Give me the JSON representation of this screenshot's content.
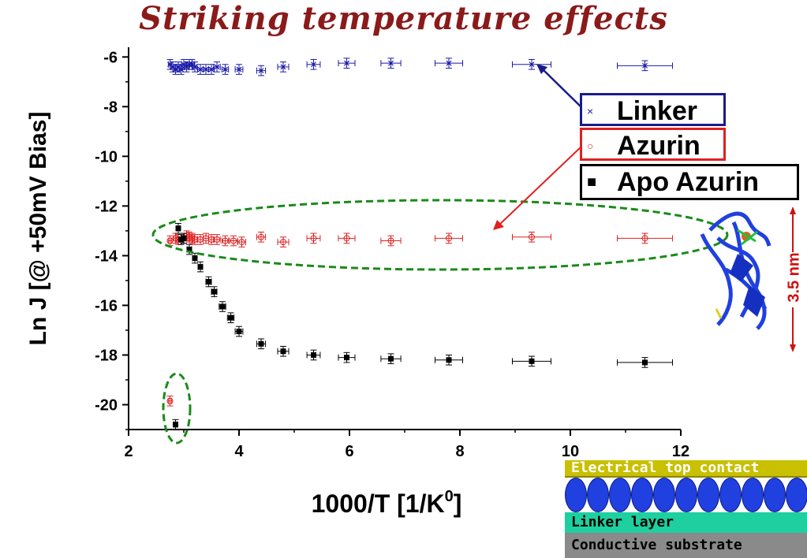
{
  "title": "Striking temperature effects",
  "chart_data": {
    "type": "scatter",
    "xlabel": "1000/T [1/K",
    "xlabel_sup": "0",
    "xlabel_end": "]",
    "ylabel": "Ln J [@ +50mV Bias]",
    "xlim": [
      2,
      12
    ],
    "ylim": [
      -21,
      -5.8
    ],
    "xticks": [
      2,
      4,
      6,
      8,
      10,
      12
    ],
    "yticks": [
      -20,
      -18,
      -16,
      -14,
      -12,
      -10,
      -8,
      -6
    ],
    "series": [
      {
        "name": "Linker",
        "marker": "x",
        "color": "#1a1aa8",
        "x": [
          2.75,
          2.8,
          2.85,
          2.9,
          2.95,
          3.0,
          3.05,
          3.1,
          3.15,
          3.2,
          3.3,
          3.4,
          3.5,
          3.6,
          3.75,
          4.0,
          4.4,
          4.8,
          5.35,
          5.95,
          6.75,
          7.8,
          9.3,
          11.35
        ],
        "y": [
          -6.3,
          -6.4,
          -6.5,
          -6.4,
          -6.5,
          -6.3,
          -6.4,
          -6.3,
          -6.3,
          -6.4,
          -6.5,
          -6.5,
          -6.5,
          -6.4,
          -6.5,
          -6.5,
          -6.55,
          -6.4,
          -6.3,
          -6.25,
          -6.25,
          -6.25,
          -6.3,
          -6.35
        ],
        "xerr": [
          0.03,
          0.03,
          0.03,
          0.03,
          0.03,
          0.04,
          0.04,
          0.04,
          0.04,
          0.04,
          0.05,
          0.05,
          0.05,
          0.06,
          0.06,
          0.07,
          0.08,
          0.1,
          0.12,
          0.15,
          0.18,
          0.25,
          0.35,
          0.5
        ],
        "yerr": [
          0.2,
          0.2,
          0.2,
          0.2,
          0.2,
          0.2,
          0.2,
          0.2,
          0.2,
          0.2,
          0.2,
          0.2,
          0.2,
          0.2,
          0.2,
          0.2,
          0.2,
          0.2,
          0.2,
          0.2,
          0.2,
          0.2,
          0.2,
          0.2
        ]
      },
      {
        "name": "Azurin",
        "marker": "o",
        "color": "#e02020",
        "x": [
          2.75,
          2.85,
          2.9,
          3.0,
          3.05,
          3.1,
          3.15,
          3.2,
          3.3,
          3.4,
          3.5,
          3.6,
          3.75,
          3.9,
          4.05,
          4.4,
          4.8,
          5.35,
          5.95,
          6.75,
          7.8,
          9.3,
          11.35,
          2.75
        ],
        "y": [
          -13.4,
          -13.3,
          -13.35,
          -13.3,
          -13.2,
          -13.25,
          -13.3,
          -13.35,
          -13.35,
          -13.3,
          -13.35,
          -13.35,
          -13.4,
          -13.4,
          -13.45,
          -13.25,
          -13.45,
          -13.3,
          -13.3,
          -13.4,
          -13.3,
          -13.25,
          -13.3,
          -19.85
        ],
        "xerr": [
          0.03,
          0.03,
          0.03,
          0.04,
          0.04,
          0.04,
          0.04,
          0.04,
          0.05,
          0.05,
          0.05,
          0.06,
          0.06,
          0.07,
          0.07,
          0.08,
          0.1,
          0.12,
          0.15,
          0.18,
          0.25,
          0.35,
          0.5,
          0.03
        ],
        "yerr": [
          0.2,
          0.2,
          0.2,
          0.2,
          0.2,
          0.2,
          0.2,
          0.2,
          0.2,
          0.2,
          0.2,
          0.2,
          0.2,
          0.2,
          0.2,
          0.2,
          0.2,
          0.2,
          0.2,
          0.2,
          0.2,
          0.2,
          0.2,
          0.2
        ]
      },
      {
        "name": "Apo Azurin",
        "marker": "square",
        "color": "#000000",
        "x": [
          2.9,
          2.95,
          3.0,
          3.1,
          3.2,
          3.3,
          3.45,
          3.55,
          3.7,
          3.85,
          4.0,
          4.4,
          4.8,
          5.35,
          5.95,
          6.75,
          7.8,
          9.3,
          11.35,
          2.85
        ],
        "y": [
          -12.9,
          -13.35,
          -13.3,
          -13.75,
          -14.1,
          -14.45,
          -15.05,
          -15.45,
          -16.05,
          -16.5,
          -17.05,
          -17.55,
          -17.85,
          -18.0,
          -18.1,
          -18.15,
          -18.2,
          -18.25,
          -18.3,
          -20.8
        ],
        "xerr": [
          0.03,
          0.03,
          0.03,
          0.04,
          0.04,
          0.04,
          0.05,
          0.05,
          0.06,
          0.06,
          0.07,
          0.08,
          0.1,
          0.12,
          0.15,
          0.18,
          0.25,
          0.35,
          0.5,
          0.03
        ],
        "yerr": [
          0.2,
          0.2,
          0.2,
          0.2,
          0.2,
          0.2,
          0.2,
          0.2,
          0.2,
          0.2,
          0.2,
          0.2,
          0.2,
          0.2,
          0.2,
          0.2,
          0.2,
          0.2,
          0.2,
          0.2
        ]
      }
    ],
    "legend_placement": "right",
    "grid": false
  },
  "legend": {
    "linker": "Linker",
    "azurin": "Azurin",
    "apo": "Apo Azurin",
    "linker_symbol": "×",
    "azurin_symbol": "○",
    "apo_symbol": "■"
  },
  "scale_label": "3.5 nm",
  "layers": {
    "top": "Electrical top contact",
    "linker": "Linker layer",
    "substrate": "Conductive substrate"
  },
  "colors": {
    "title": "#8b1a1a",
    "highlight_ellipse": "#1a8a1a",
    "arrow_blue": "#1a1a8b",
    "arrow_red": "#e02020",
    "protein": "#2040e0"
  }
}
